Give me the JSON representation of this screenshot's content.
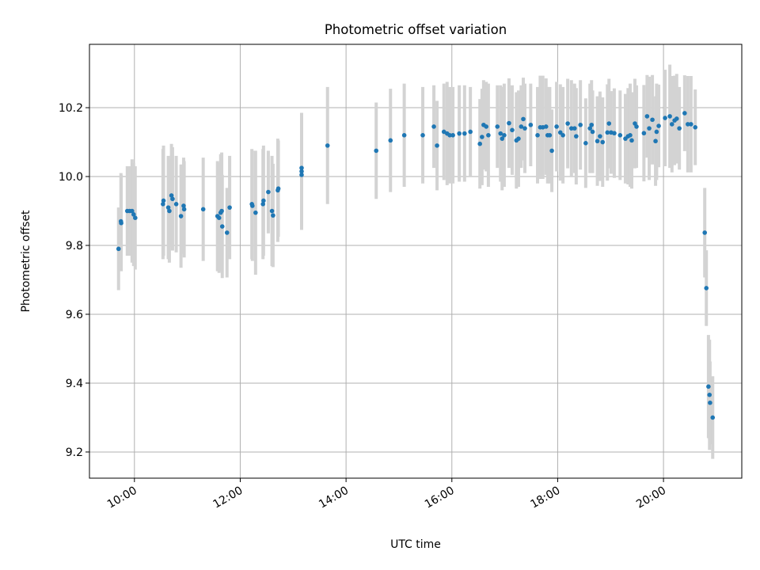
{
  "chart_data": {
    "type": "scatter",
    "title": "Photometric offset variation",
    "xlabel": "UTC time",
    "ylabel": "Photometric offset",
    "x_units": "hours (UTC, decimal)",
    "xlim": [
      9.15,
      21.48
    ],
    "ylim": [
      9.124,
      10.384
    ],
    "x_ticks": [
      10,
      12,
      14,
      16,
      18,
      20
    ],
    "x_tick_labels": [
      "10:00",
      "12:00",
      "14:00",
      "16:00",
      "18:00",
      "20:00"
    ],
    "y_ticks": [
      9.2,
      9.4,
      9.6,
      9.8,
      10.0,
      10.2
    ],
    "y_tick_labels": [
      "9.2",
      "9.4",
      "9.6",
      "9.8",
      "10.0",
      "10.2"
    ],
    "grid": true,
    "colors": {
      "points": "#1f77b4",
      "errorbars": "#d3d3d3",
      "grid": "#b0b0b0"
    },
    "series": [
      {
        "name": "offset",
        "fields": [
          "time_h",
          "offset",
          "error"
        ],
        "points": [
          [
            9.7,
            9.79,
            0.12
          ],
          [
            9.745,
            9.87,
            0.14
          ],
          [
            9.75,
            9.865,
            0.14
          ],
          [
            9.865,
            9.9,
            0.13
          ],
          [
            9.91,
            9.9,
            0.13
          ],
          [
            9.955,
            9.9,
            0.15
          ],
          [
            9.985,
            9.89,
            0.15
          ],
          [
            10.015,
            9.88,
            0.15
          ],
          [
            10.54,
            9.92,
            0.16
          ],
          [
            10.55,
            9.93,
            0.16
          ],
          [
            10.64,
            9.91,
            0.15
          ],
          [
            10.66,
            9.9,
            0.15
          ],
          [
            10.7,
            9.945,
            0.15
          ],
          [
            10.72,
            9.935,
            0.15
          ],
          [
            10.79,
            9.92,
            0.14
          ],
          [
            10.88,
            9.885,
            0.15
          ],
          [
            10.93,
            9.915,
            0.14
          ],
          [
            10.94,
            9.905,
            0.14
          ],
          [
            11.3,
            9.905,
            0.15
          ],
          [
            11.57,
            9.885,
            0.16
          ],
          [
            11.6,
            9.88,
            0.16
          ],
          [
            11.63,
            9.895,
            0.17
          ],
          [
            11.65,
            9.9,
            0.17
          ],
          [
            11.66,
            9.855,
            0.15
          ],
          [
            11.75,
            9.837,
            0.13
          ],
          [
            11.8,
            9.91,
            0.15
          ],
          [
            12.22,
            9.92,
            0.16
          ],
          [
            12.23,
            9.915,
            0.16
          ],
          [
            12.29,
            9.895,
            0.18
          ],
          [
            12.43,
            9.92,
            0.16
          ],
          [
            12.44,
            9.93,
            0.16
          ],
          [
            12.53,
            9.955,
            0.12
          ],
          [
            12.6,
            9.9,
            0.16
          ],
          [
            12.62,
            9.887,
            0.15
          ],
          [
            12.71,
            9.96,
            0.15
          ],
          [
            12.72,
            9.965,
            0.14
          ],
          [
            13.16,
            10.025,
            0.16
          ],
          [
            13.16,
            10.015,
            0.16
          ],
          [
            13.16,
            10.005,
            0.16
          ],
          [
            13.65,
            10.09,
            0.17
          ],
          [
            14.57,
            10.075,
            0.14
          ],
          [
            14.84,
            10.105,
            0.15
          ],
          [
            15.1,
            10.12,
            0.15
          ],
          [
            15.45,
            10.12,
            0.14
          ],
          [
            15.66,
            10.145,
            0.12
          ],
          [
            15.72,
            10.09,
            0.13
          ],
          [
            15.85,
            10.13,
            0.14
          ],
          [
            15.91,
            10.125,
            0.15
          ],
          [
            15.96,
            10.12,
            0.14
          ],
          [
            16.02,
            10.12,
            0.14
          ],
          [
            16.14,
            10.125,
            0.14
          ],
          [
            16.24,
            10.125,
            0.14
          ],
          [
            16.35,
            10.13,
            0.13
          ],
          [
            16.53,
            10.095,
            0.13
          ],
          [
            16.57,
            10.115,
            0.14
          ],
          [
            16.6,
            10.15,
            0.13
          ],
          [
            16.65,
            10.145,
            0.13
          ],
          [
            16.69,
            10.12,
            0.15
          ],
          [
            16.86,
            10.145,
            0.12
          ],
          [
            16.92,
            10.125,
            0.14
          ],
          [
            16.95,
            10.11,
            0.15
          ],
          [
            16.99,
            10.12,
            0.15
          ],
          [
            17.08,
            10.155,
            0.13
          ],
          [
            17.14,
            10.135,
            0.13
          ],
          [
            17.22,
            10.105,
            0.14
          ],
          [
            17.26,
            10.11,
            0.14
          ],
          [
            17.31,
            10.145,
            0.12
          ],
          [
            17.35,
            10.167,
            0.12
          ],
          [
            17.38,
            10.14,
            0.13
          ],
          [
            17.49,
            10.15,
            0.12
          ],
          [
            17.62,
            10.12,
            0.14
          ],
          [
            17.67,
            10.143,
            0.15
          ],
          [
            17.72,
            10.143,
            0.15
          ],
          [
            17.78,
            10.145,
            0.14
          ],
          [
            17.81,
            10.12,
            0.14
          ],
          [
            17.85,
            10.12,
            0.14
          ],
          [
            17.89,
            10.075,
            0.12
          ],
          [
            17.98,
            10.145,
            0.13
          ],
          [
            18.05,
            10.128,
            0.14
          ],
          [
            18.1,
            10.12,
            0.14
          ],
          [
            18.19,
            10.154,
            0.13
          ],
          [
            18.26,
            10.14,
            0.14
          ],
          [
            18.32,
            10.14,
            0.13
          ],
          [
            18.35,
            10.117,
            0.14
          ],
          [
            18.43,
            10.15,
            0.13
          ],
          [
            18.53,
            10.097,
            0.13
          ],
          [
            18.61,
            10.14,
            0.13
          ],
          [
            18.64,
            10.15,
            0.13
          ],
          [
            18.66,
            10.13,
            0.12
          ],
          [
            18.75,
            10.103,
            0.13
          ],
          [
            18.8,
            10.117,
            0.13
          ],
          [
            18.85,
            10.1,
            0.13
          ],
          [
            18.94,
            10.128,
            0.14
          ],
          [
            18.97,
            10.154,
            0.13
          ],
          [
            19.01,
            10.128,
            0.12
          ],
          [
            19.07,
            10.126,
            0.13
          ],
          [
            19.18,
            10.12,
            0.13
          ],
          [
            19.28,
            10.11,
            0.13
          ],
          [
            19.33,
            10.117,
            0.14
          ],
          [
            19.37,
            10.12,
            0.15
          ],
          [
            19.4,
            10.105,
            0.14
          ],
          [
            19.46,
            10.154,
            0.13
          ],
          [
            19.49,
            10.145,
            0.12
          ],
          [
            19.63,
            10.126,
            0.14
          ],
          [
            19.69,
            10.175,
            0.12
          ],
          [
            19.73,
            10.14,
            0.15
          ],
          [
            19.79,
            10.165,
            0.13
          ],
          [
            19.85,
            10.103,
            0.13
          ],
          [
            19.87,
            10.13,
            0.14
          ],
          [
            19.91,
            10.147,
            0.12
          ],
          [
            20.03,
            10.17,
            0.14
          ],
          [
            20.12,
            10.175,
            0.15
          ],
          [
            20.16,
            10.152,
            0.14
          ],
          [
            20.21,
            10.163,
            0.13
          ],
          [
            20.25,
            10.168,
            0.13
          ],
          [
            20.3,
            10.14,
            0.12
          ],
          [
            20.4,
            10.184,
            0.11
          ],
          [
            20.46,
            10.152,
            0.14
          ],
          [
            20.52,
            10.152,
            0.14
          ],
          [
            20.6,
            10.143,
            0.11
          ],
          [
            20.78,
            9.837,
            0.13
          ],
          [
            20.81,
            9.676,
            0.11
          ],
          [
            20.85,
            9.39,
            0.15
          ],
          [
            20.87,
            9.366,
            0.16
          ],
          [
            20.88,
            9.343,
            0.12
          ],
          [
            20.93,
            9.3,
            0.12
          ]
        ]
      }
    ]
  }
}
